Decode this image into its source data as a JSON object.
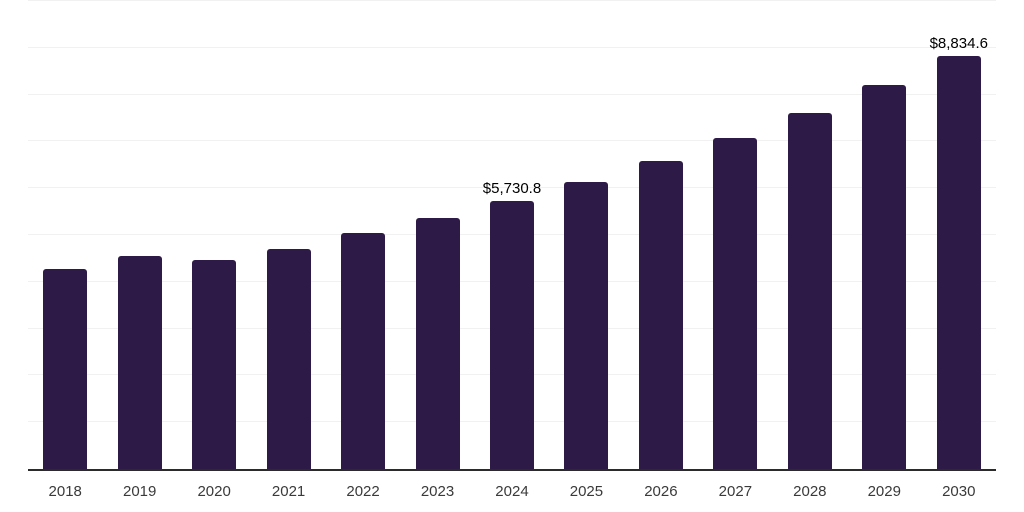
{
  "colors": {
    "bar": "#2E1A47",
    "grid": "#F1F1F1",
    "axis": "#2B2B2B",
    "data_label": "#000000",
    "tick_label": "#3A3A3A",
    "background": "#FFFFFF"
  },
  "chart_data": {
    "type": "bar",
    "title": "",
    "xlabel": "",
    "ylabel": "",
    "categories": [
      "2018",
      "2019",
      "2020",
      "2021",
      "2022",
      "2023",
      "2024",
      "2025",
      "2026",
      "2027",
      "2028",
      "2029",
      "2030"
    ],
    "values": [
      4270,
      4560,
      4460,
      4710,
      5040,
      5370,
      5730.8,
      6140,
      6580,
      7070,
      7600,
      8200,
      8834.6
    ],
    "data_labels": [
      {
        "category": "2024",
        "text": "$5,730.8"
      },
      {
        "category": "2030",
        "text": "$8,834.6"
      }
    ],
    "ylim": [
      0,
      10000
    ],
    "gridline_step": 1000,
    "grid": true,
    "legend": false,
    "y_axis_labels_visible": false
  }
}
